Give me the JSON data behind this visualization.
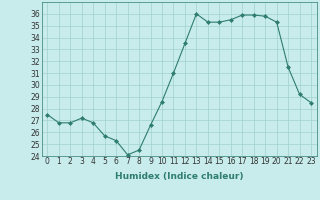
{
  "x": [
    0,
    1,
    2,
    3,
    4,
    5,
    6,
    7,
    8,
    9,
    10,
    11,
    12,
    13,
    14,
    15,
    16,
    17,
    18,
    19,
    20,
    21,
    22,
    23
  ],
  "y": [
    27.5,
    26.8,
    26.8,
    27.2,
    26.8,
    25.7,
    25.3,
    24.1,
    24.5,
    26.6,
    28.6,
    31.0,
    33.5,
    36.0,
    35.3,
    35.3,
    35.5,
    35.9,
    35.9,
    35.8,
    35.3,
    31.5,
    29.2,
    28.5
  ],
  "line_color": "#2e7d6e",
  "marker": "D",
  "marker_size": 2,
  "bg_color": "#c8ecec",
  "grid_color": "#a0d0d0",
  "xlabel": "Humidex (Indice chaleur)",
  "xlim": [
    -0.5,
    23.5
  ],
  "ylim": [
    24,
    37
  ],
  "yticks": [
    24,
    25,
    26,
    27,
    28,
    29,
    30,
    31,
    32,
    33,
    34,
    35,
    36
  ],
  "xticks": [
    0,
    1,
    2,
    3,
    4,
    5,
    6,
    7,
    8,
    9,
    10,
    11,
    12,
    13,
    14,
    15,
    16,
    17,
    18,
    19,
    20,
    21,
    22,
    23
  ],
  "tick_fontsize": 5.5,
  "label_fontsize": 6.5
}
